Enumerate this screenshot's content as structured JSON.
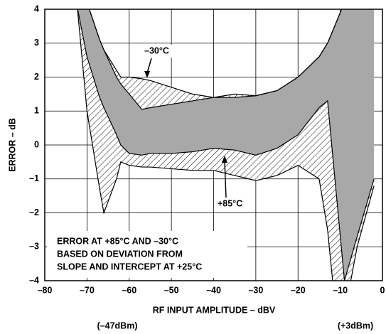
{
  "chart_data": {
    "type": "band",
    "x_label": "RF INPUT AMPLITUDE – dBV",
    "y_label": "ERROR – dB",
    "annotations": [
      "–30°C",
      "+85°C",
      "ERROR AT +85°C AND –30°C",
      "BASED ON DEVIATION FROM",
      "SLOPE AND INTERCEPT AT +25°C",
      "(–47dBm)",
      "(+3dBm)"
    ],
    "x": [
      -73,
      -70,
      -67,
      -66,
      -63,
      -62,
      -60,
      -57,
      -55,
      -50,
      -45,
      -40,
      -35,
      -30,
      -25,
      -20,
      -15,
      -13,
      -11,
      -9,
      -6,
      -2
    ],
    "series": [
      {
        "fill": "hatch",
        "color": "#000000",
        "upper": [
          5.5,
          4.2,
          3.1,
          2.8,
          2.2,
          2.0,
          2.0,
          1.95,
          1.9,
          1.7,
          1.5,
          1.4,
          1.5,
          1.45,
          1.6,
          2.0,
          2.6,
          3.0,
          3.6,
          4.2,
          4.5,
          4.5
        ],
        "lower": [
          5.0,
          1.0,
          -1.3,
          -2.0,
          -1.0,
          -0.5,
          -0.6,
          -0.65,
          -0.65,
          -0.7,
          -0.75,
          -0.75,
          -0.9,
          -1.05,
          -0.9,
          -0.6,
          -1.0,
          -2.5,
          -5.0,
          -5.0,
          -3.0,
          -1.2
        ]
      },
      {
        "fill": "solid",
        "color": "#a8a8a8",
        "upper": [
          5.5,
          4.2,
          3.1,
          2.8,
          2.0,
          1.8,
          1.5,
          1.05,
          1.1,
          1.2,
          1.3,
          1.4,
          1.4,
          1.45,
          1.6,
          2.0,
          2.6,
          3.0,
          3.6,
          4.2,
          4.5,
          4.5
        ],
        "lower": [
          4.5,
          2.6,
          1.4,
          1.1,
          0.3,
          0.0,
          -0.25,
          -0.3,
          -0.25,
          -0.25,
          -0.2,
          -0.1,
          -0.15,
          -0.3,
          -0.1,
          0.3,
          1.1,
          1.3,
          -1.35,
          -4.0,
          -2.7,
          -1.0
        ]
      }
    ],
    "xlim": [
      -80,
      0
    ],
    "xticks": [
      {
        "value": -80,
        "label": "–80"
      },
      {
        "value": -70,
        "label": "–70"
      },
      {
        "value": -60,
        "label": "–60"
      },
      {
        "value": -50,
        "label": "–50"
      },
      {
        "value": -40,
        "label": "–40"
      },
      {
        "value": -30,
        "label": "–30"
      },
      {
        "value": -20,
        "label": "–20"
      },
      {
        "value": -10,
        "label": "–10"
      },
      0
    ],
    "ylim": [
      -4,
      4
    ],
    "yticks": [
      {
        "value": -4,
        "label": "–4"
      },
      {
        "value": -3,
        "label": "–3"
      },
      {
        "value": -2,
        "label": "–2"
      },
      {
        "value": -1,
        "label": "–1"
      },
      0,
      1,
      2,
      3,
      4
    ],
    "grid": true
  }
}
